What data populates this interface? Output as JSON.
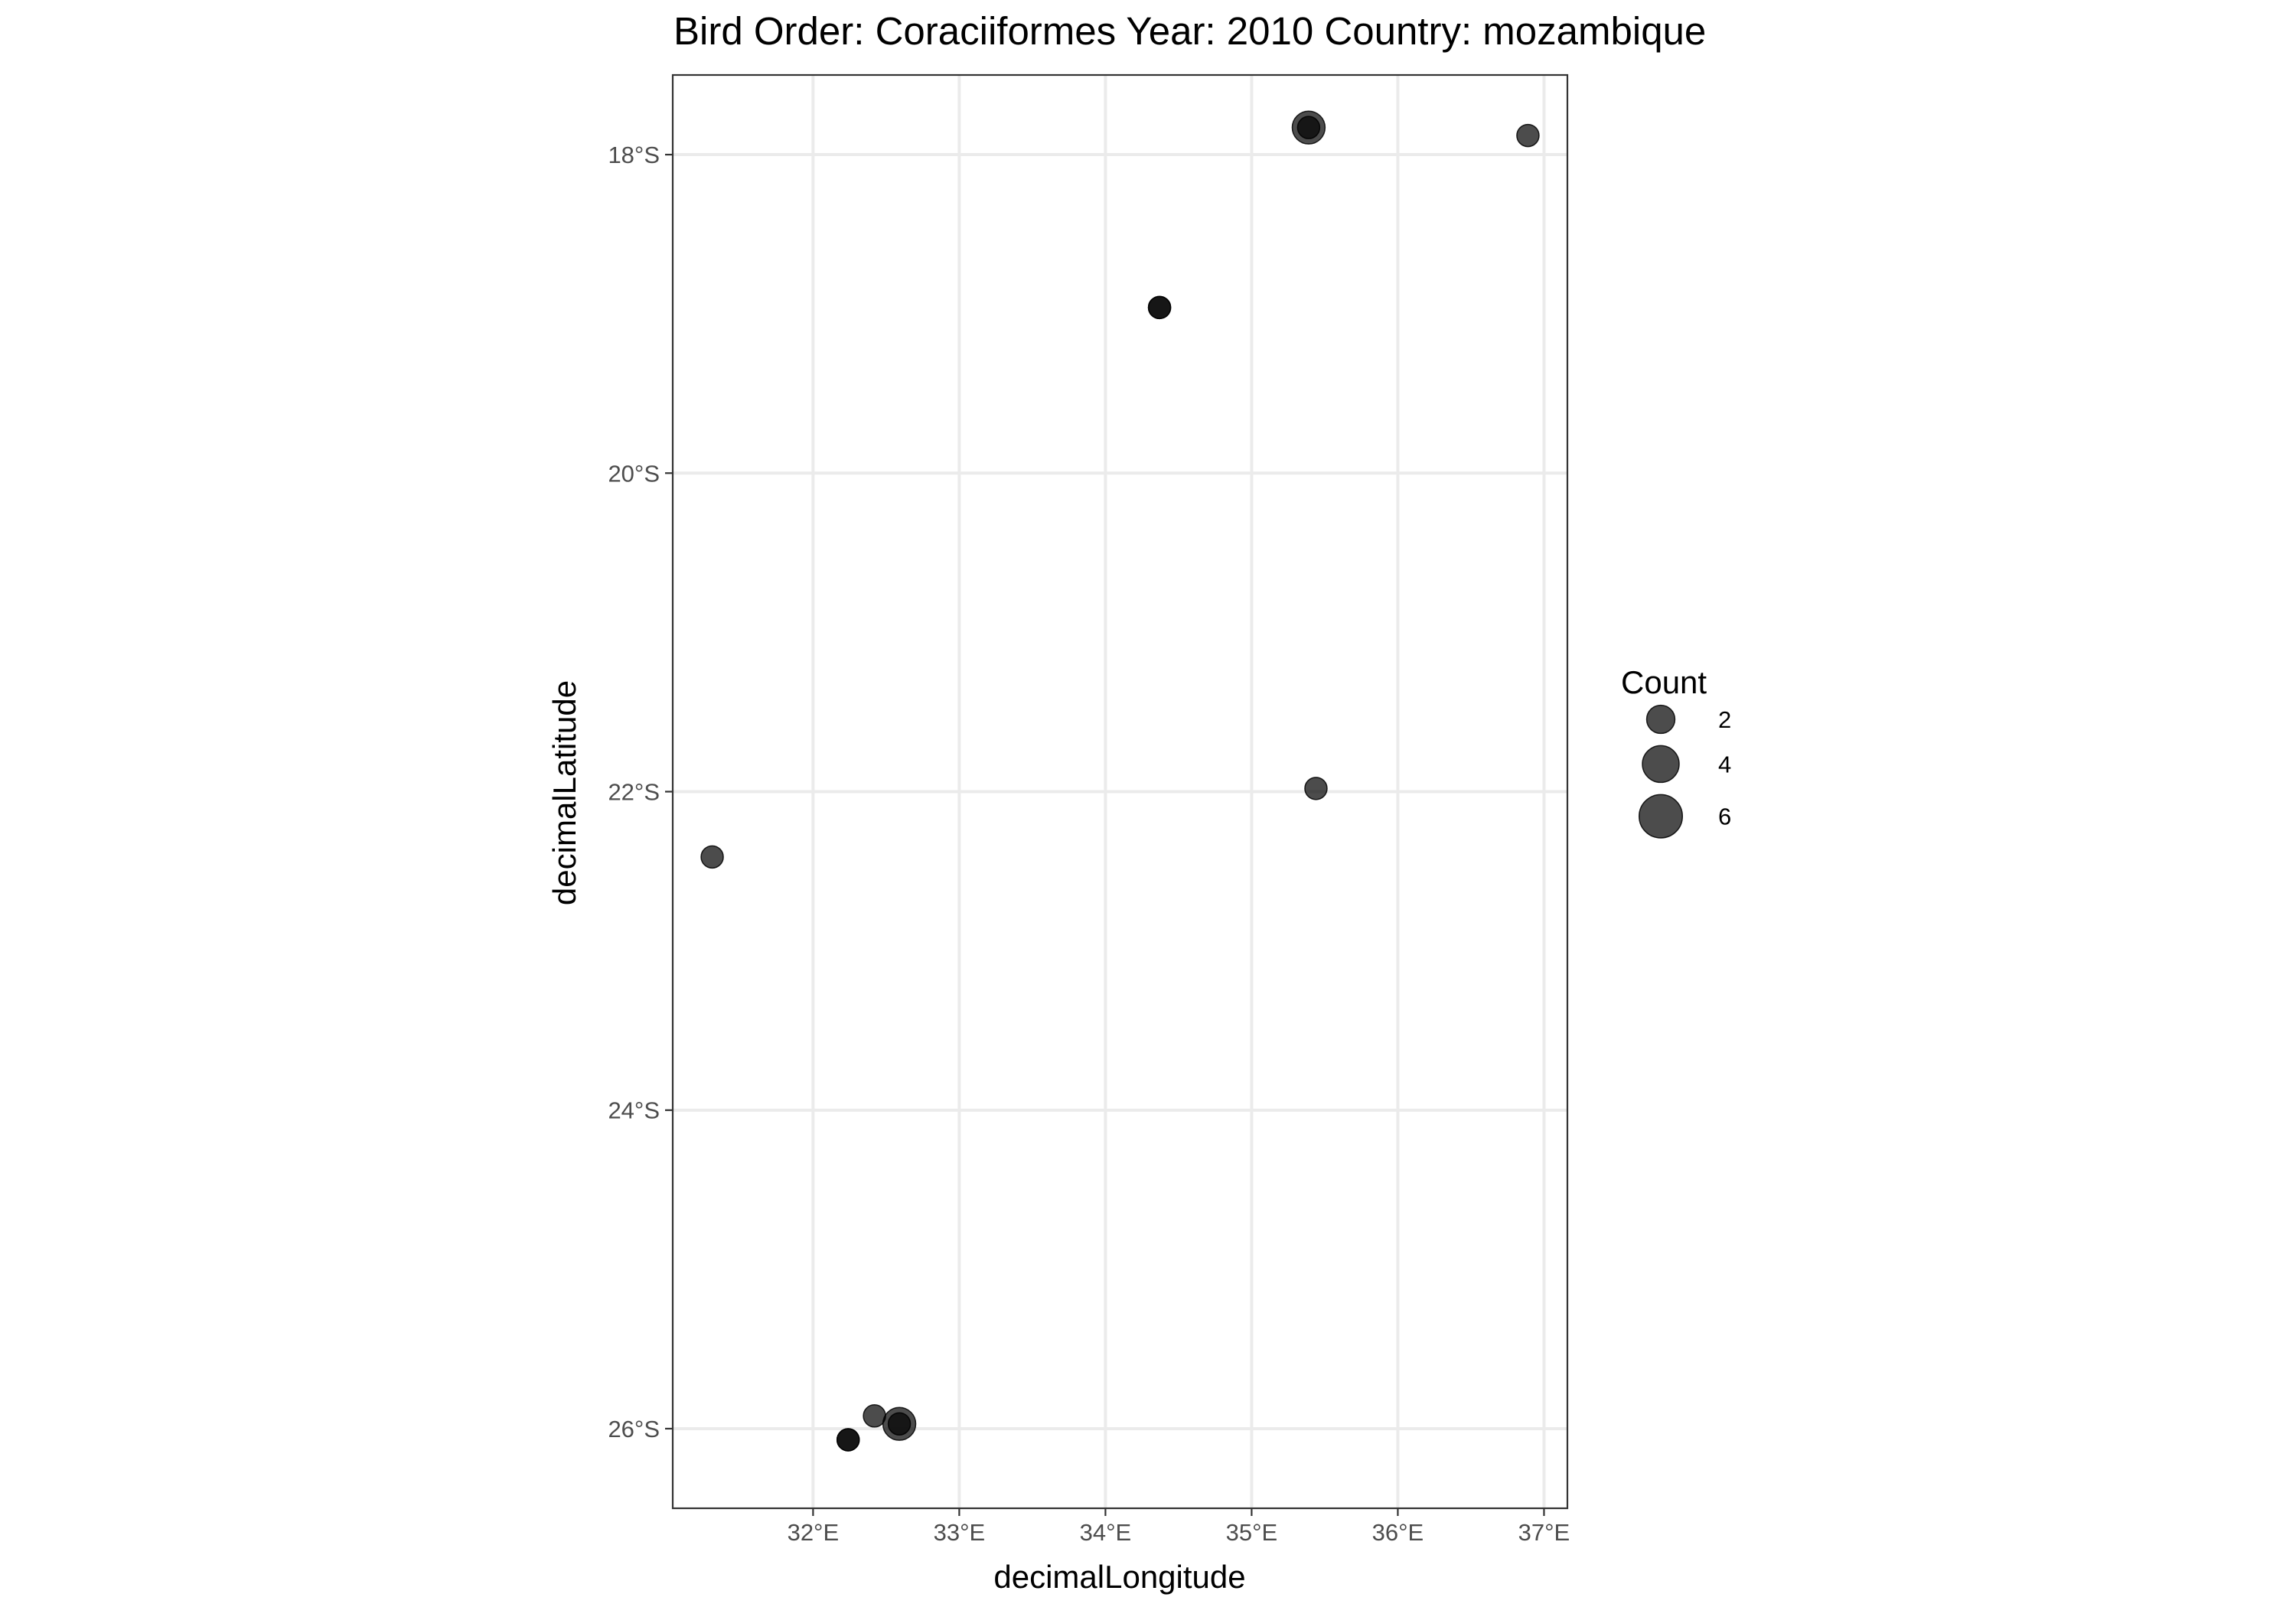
{
  "chart_data": {
    "type": "scatter",
    "title": "Bird Order: Coraciiformes Year: 2010 Country: mozambique",
    "xlabel": "decimalLongitude",
    "ylabel": "decimalLatitude",
    "xlim": [
      31.04,
      37.16
    ],
    "ylim": [
      -26.5,
      -17.5
    ],
    "x_ticks": [
      {
        "value": 32,
        "label": "32°E"
      },
      {
        "value": 33,
        "label": "33°E"
      },
      {
        "value": 34,
        "label": "34°E"
      },
      {
        "value": 35,
        "label": "35°E"
      },
      {
        "value": 36,
        "label": "36°E"
      },
      {
        "value": 37,
        "label": "37°E"
      }
    ],
    "y_ticks": [
      {
        "value": -18,
        "label": "18°S"
      },
      {
        "value": -20,
        "label": "20°S"
      },
      {
        "value": -22,
        "label": "22°S"
      },
      {
        "value": -24,
        "label": "24°S"
      },
      {
        "value": -26,
        "label": "26°S"
      }
    ],
    "grid": true,
    "point_color": "#000000",
    "point_opacity": 0.7,
    "size_variable": "Count",
    "points": [
      {
        "x": 35.39,
        "y": -17.83,
        "count": 3
      },
      {
        "x": 35.39,
        "y": -17.83,
        "count": 1
      },
      {
        "x": 36.89,
        "y": -17.88,
        "count": 1
      },
      {
        "x": 34.37,
        "y": -18.96,
        "count": 1
      },
      {
        "x": 34.37,
        "y": -18.96,
        "count": 1
      },
      {
        "x": 35.44,
        "y": -21.98,
        "count": 1
      },
      {
        "x": 31.31,
        "y": -22.41,
        "count": 1
      },
      {
        "x": 32.42,
        "y": -25.92,
        "count": 1
      },
      {
        "x": 32.59,
        "y": -25.97,
        "count": 3
      },
      {
        "x": 32.59,
        "y": -25.97,
        "count": 1
      },
      {
        "x": 32.24,
        "y": -26.07,
        "count": 1
      },
      {
        "x": 32.24,
        "y": -26.07,
        "count": 1
      }
    ],
    "legend": {
      "title": "Count",
      "position": "right",
      "entries": [
        {
          "value": 2,
          "label": "2"
        },
        {
          "value": 4,
          "label": "4"
        },
        {
          "value": 6,
          "label": "6"
        }
      ]
    }
  }
}
